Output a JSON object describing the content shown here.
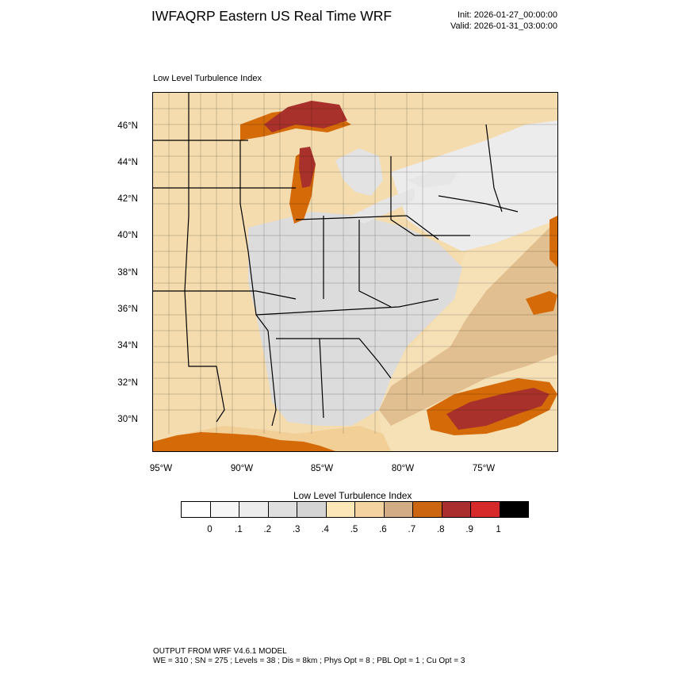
{
  "header": {
    "title": "IWFAQRP Eastern US Real Time WRF",
    "init": "Init: 2026-01-27_00:00:00",
    "valid": "Valid: 2026-01-31_03:00:00"
  },
  "map": {
    "field_label": "Low Level Turbulence Index",
    "lat_labels": [
      "46°N",
      "44°N",
      "42°N",
      "40°N",
      "38°N",
      "36°N",
      "34°N",
      "32°N",
      "30°N"
    ],
    "lon_labels": [
      "95°W",
      "90°W",
      "85°W",
      "80°W",
      "75°W"
    ],
    "colors": {
      "ocean_far": "#f6e0b6",
      "land_light": "#f4dcae",
      "land_mid": "#f1cf97",
      "lake_gray": "#e0e0e0",
      "gray_03": "#d4d4d4",
      "tan": "#d9b080",
      "orange": "#d56a09",
      "red_dark": "#a8322b",
      "boundary": "#000000"
    }
  },
  "colorbar": {
    "title": "Low Level Turbulence Index",
    "colors": [
      "#ffffff",
      "#f6f6f6",
      "#ececec",
      "#dfdfdf",
      "#d4d4d4",
      "#fde6b8",
      "#f4d3a0",
      "#d1ac84",
      "#cc6511",
      "#ab2e2e",
      "#d62a2a",
      "#000000"
    ],
    "labels": [
      "0",
      ".1",
      ".2",
      ".3",
      ".4",
      ".5",
      ".6",
      ".7",
      ".8",
      ".9",
      "1"
    ]
  },
  "footer": {
    "line1": "OUTPUT FROM WRF V4.6.1 MODEL",
    "line2": "WE = 310 ; SN = 275 ; Levels = 38 ; Dis = 8km ; Phys Opt = 8 ; PBL Opt = 1 ; Cu Opt = 3"
  }
}
